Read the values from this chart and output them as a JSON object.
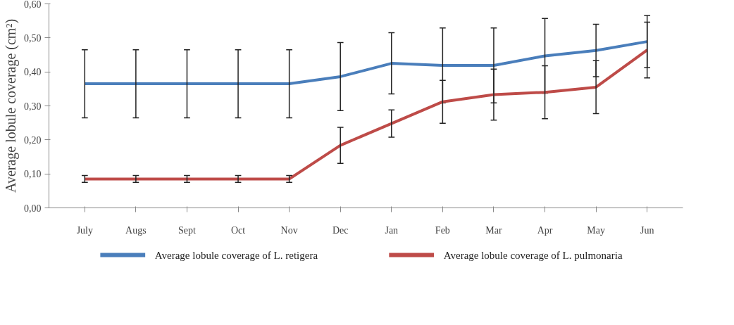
{
  "chart_data": {
    "type": "line",
    "ylabel": "Average lobule coverage (cm²)",
    "categories": [
      "July",
      "Augs",
      "Sept",
      "Oct",
      "Nov",
      "Dec",
      "Jan",
      "Feb",
      "Mar",
      "Apr",
      "May",
      "Jun"
    ],
    "series": [
      {
        "name": "Average lobule coverage of L. retigera",
        "color": "#4a7ebb",
        "values": [
          0.365,
          0.365,
          0.365,
          0.365,
          0.365,
          0.386,
          0.425,
          0.419,
          0.419,
          0.447,
          0.463,
          0.489
        ],
        "errors": [
          0.1,
          0.1,
          0.1,
          0.1,
          0.1,
          0.1,
          0.09,
          0.11,
          0.11,
          0.11,
          0.077,
          0.077
        ]
      },
      {
        "name": "Average lobule coverage of L. pulmonaria",
        "color": "#be4b48",
        "values": [
          0.085,
          0.085,
          0.085,
          0.085,
          0.085,
          0.184,
          0.248,
          0.312,
          0.333,
          0.34,
          0.355,
          0.464
        ],
        "errors": [
          0.01,
          0.01,
          0.01,
          0.01,
          0.01,
          0.053,
          0.04,
          0.063,
          0.075,
          0.078,
          0.078,
          0.082
        ]
      }
    ],
    "ylim": [
      0,
      0.6
    ],
    "yticks": [
      {
        "value": 0,
        "label": "0,00"
      },
      {
        "value": 0.1,
        "label": "0,10"
      },
      {
        "value": 0.2,
        "label": "0,20"
      },
      {
        "value": 0.3,
        "label": "0,30"
      },
      {
        "value": 0.4,
        "label": "0,40"
      },
      {
        "value": 0.5,
        "label": "0,50"
      },
      {
        "value": 0.6,
        "label": "0,60"
      }
    ],
    "grid": false,
    "legend": "bottom",
    "marker": "none",
    "line_style": "solid"
  }
}
